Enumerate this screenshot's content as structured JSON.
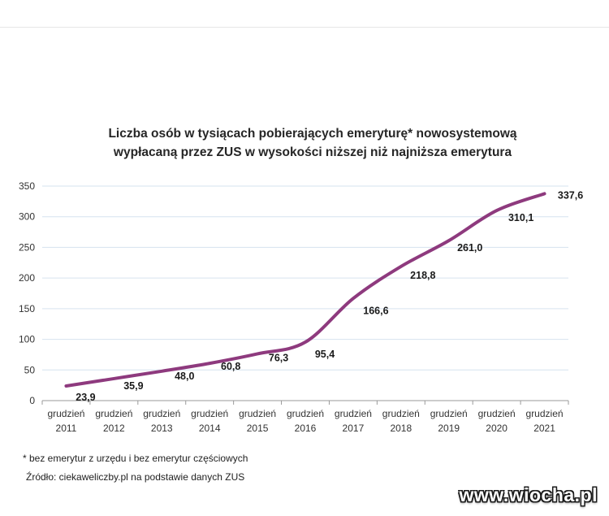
{
  "chart_data": {
    "type": "line",
    "title_lines": [
      "Liczba osób w tysiącach pobierających emeryturę* nowosystemową",
      "wypłacaną przez ZUS w wysokości niższej niż najniższa emerytura"
    ],
    "categories": [
      [
        "grudzień",
        "2011"
      ],
      [
        "grudzień",
        "2012"
      ],
      [
        "grudzień",
        "2013"
      ],
      [
        "grudzień",
        "2014"
      ],
      [
        "grudzień",
        "2015"
      ],
      [
        "grudzień",
        "2016"
      ],
      [
        "grudzień",
        "2017"
      ],
      [
        "grudzień",
        "2018"
      ],
      [
        "grudzień",
        "2019"
      ],
      [
        "grudzień",
        "2020"
      ],
      [
        "grudzień",
        "2021"
      ]
    ],
    "values": [
      23.9,
      35.9,
      48.0,
      60.8,
      76.3,
      95.4,
      166.6,
      218.8,
      261.0,
      310.1,
      337.6
    ],
    "value_labels": [
      "23,9",
      "35,9",
      "48,0",
      "60,8",
      "76,3",
      "95,4",
      "166,6",
      "218,8",
      "261,0",
      "310,1",
      "337,6"
    ],
    "ylim": [
      0,
      350
    ],
    "yticks": [
      0,
      50,
      100,
      150,
      200,
      250,
      300,
      350
    ],
    "grid": true,
    "legend": "none",
    "line_color": "#8e3a7e",
    "grid_color": "#d6e3ef"
  },
  "footnote": "* bez emerytur z urzędu i bez emerytur częściowych",
  "source": "Źródło: ciekaweliczby.pl na podstawie danych ZUS",
  "watermark": "www.wiocha.pl"
}
